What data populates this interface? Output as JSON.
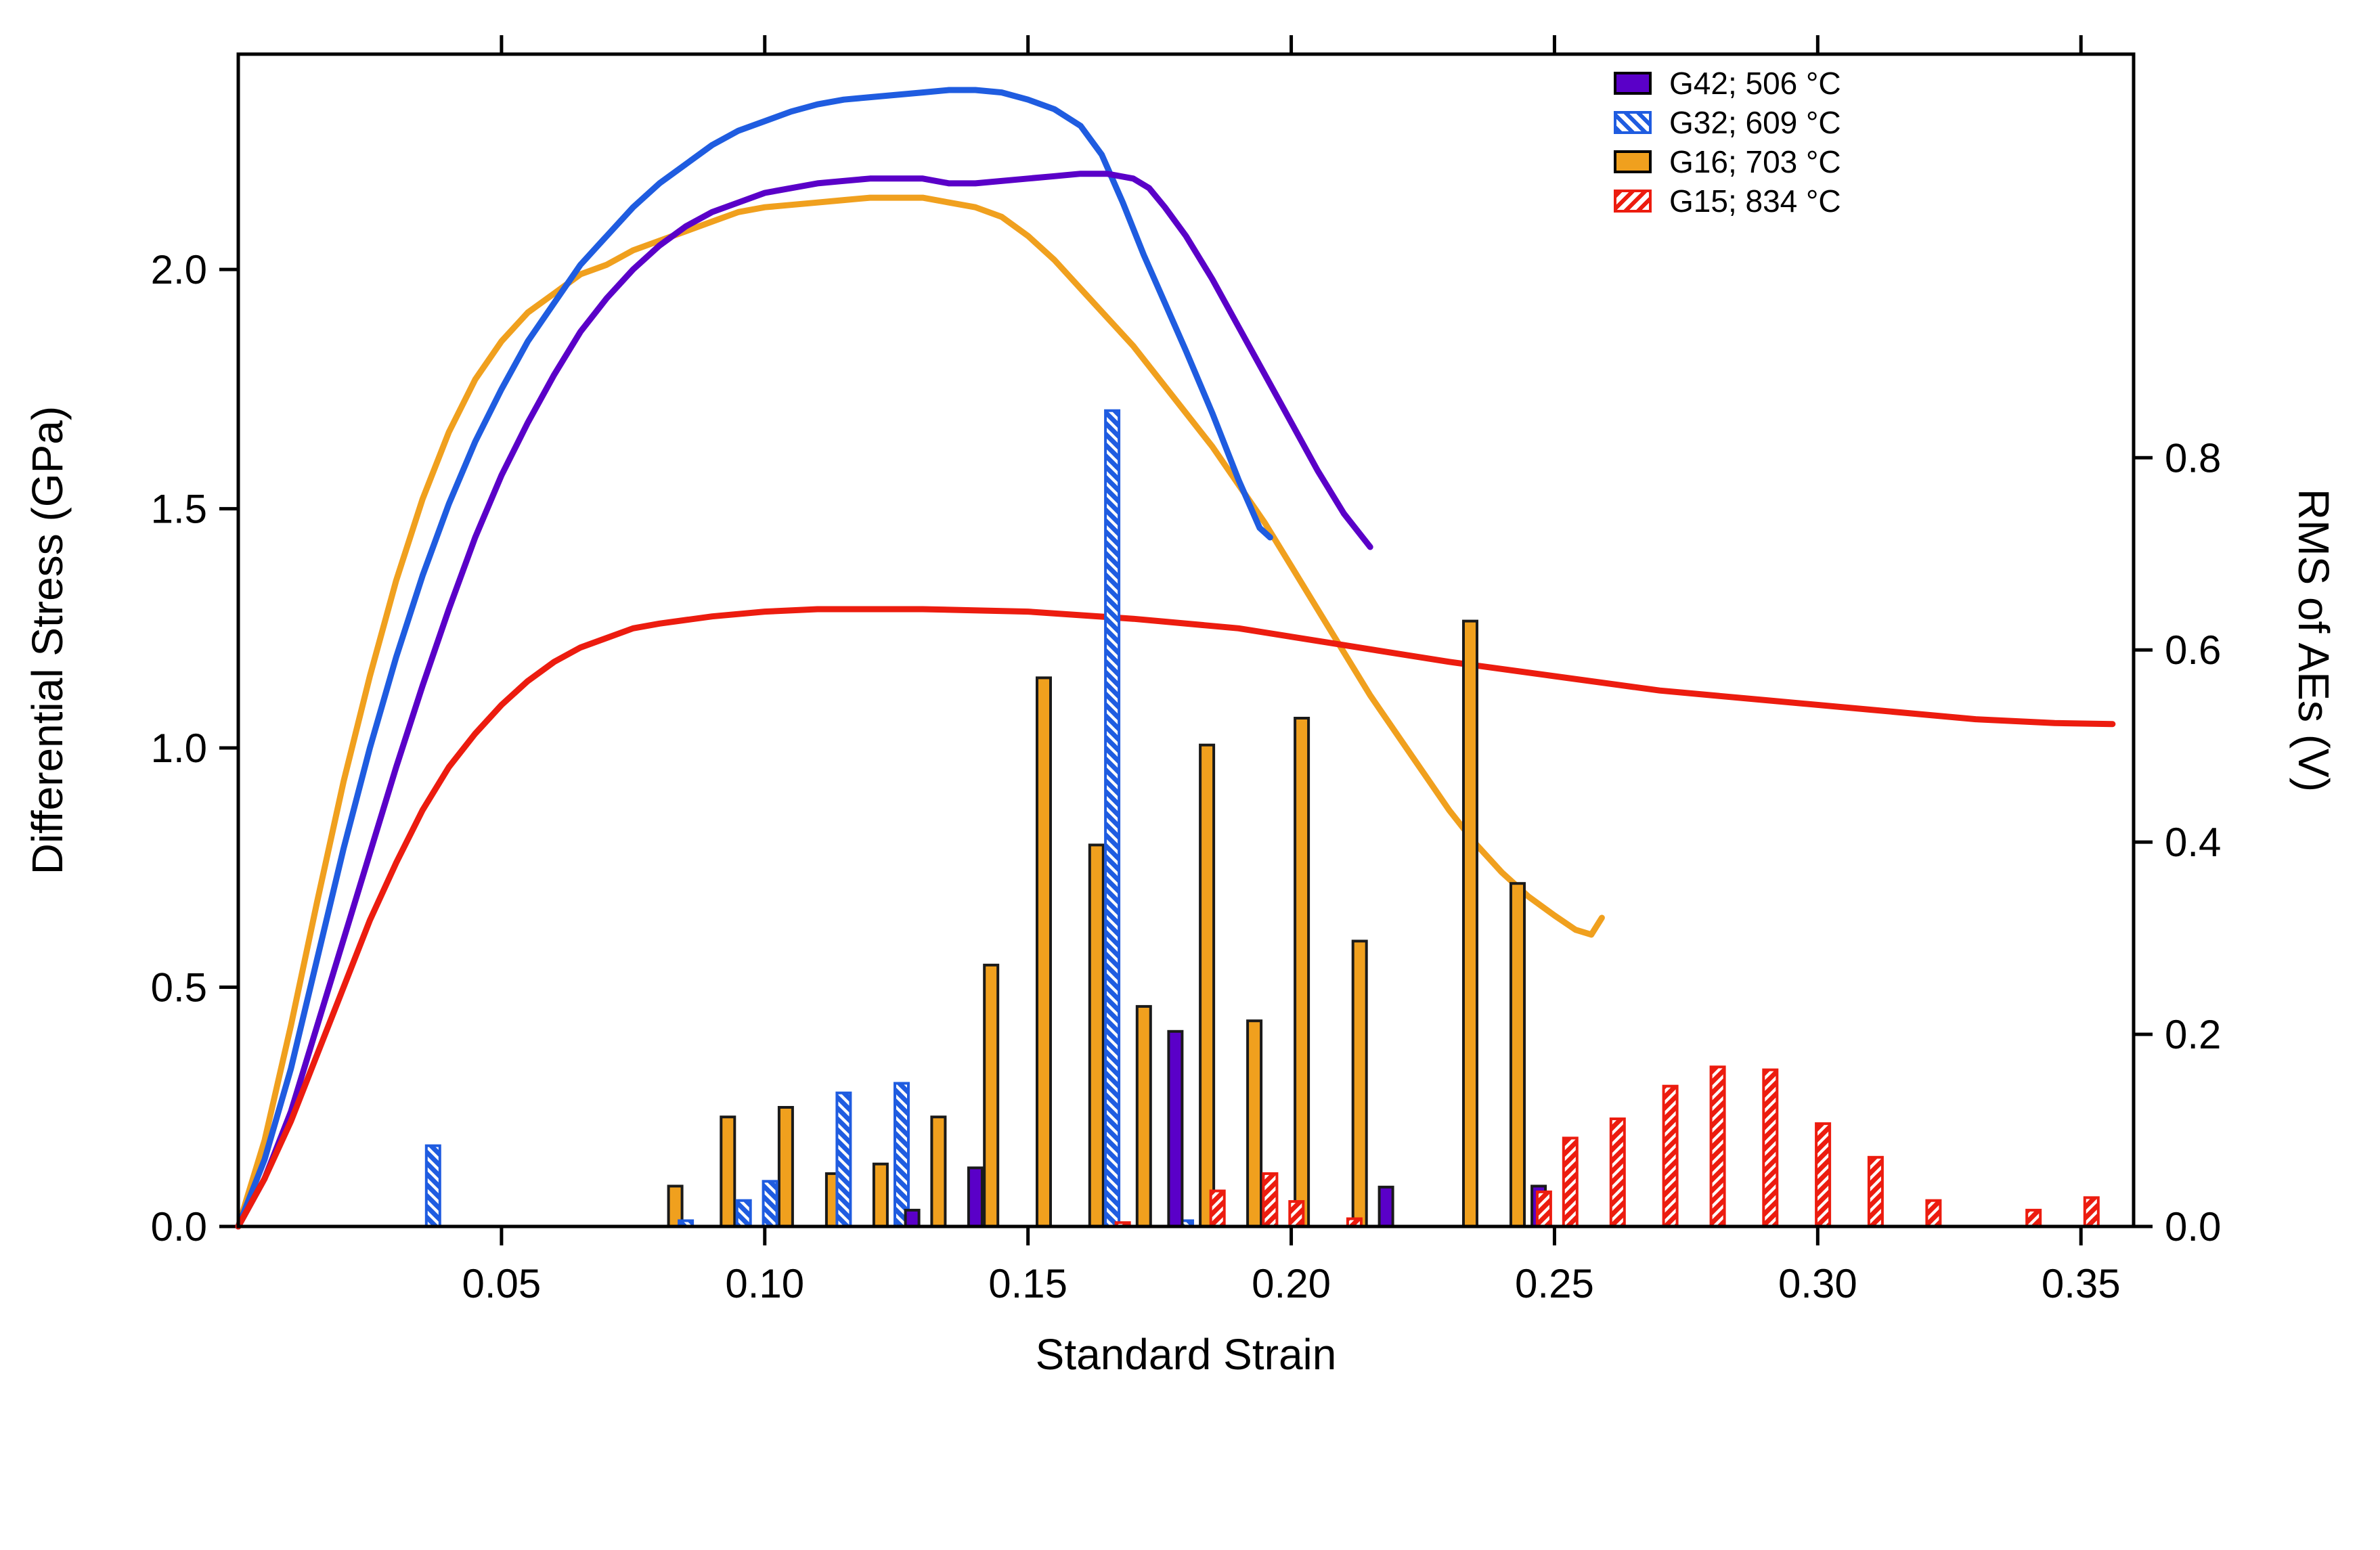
{
  "chart_data": {
    "type": "line+bar",
    "title": "",
    "xlabel": "Standard Strain",
    "ylabel_left": "Differential Stress (GPa)",
    "ylabel_right": "RMS of AEs (V)",
    "xlim": [
      0,
      0.36
    ],
    "ylim_left": [
      0,
      2.45
    ],
    "ylim_right": [
      0,
      1.22
    ],
    "grid": false,
    "background": "#ffffff",
    "axis_color": "#000000",
    "legend_position": "top-right-inside",
    "x_ticks": [
      {
        "v": 0.05,
        "label": "0.05"
      },
      {
        "v": 0.1,
        "label": "0.10"
      },
      {
        "v": 0.15,
        "label": "0.15"
      },
      {
        "v": 0.2,
        "label": "0.20"
      },
      {
        "v": 0.25,
        "label": "0.25"
      },
      {
        "v": 0.3,
        "label": "0.30"
      },
      {
        "v": 0.35,
        "label": "0.35"
      }
    ],
    "y_ticks_left": [
      {
        "v": 0.0,
        "label": "0.0"
      },
      {
        "v": 0.5,
        "label": "0.5"
      },
      {
        "v": 1.0,
        "label": "1.0"
      },
      {
        "v": 1.5,
        "label": "1.5"
      },
      {
        "v": 2.0,
        "label": "2.0"
      }
    ],
    "y_ticks_right": [
      {
        "v": 0.0,
        "label": "0.0"
      },
      {
        "v": 0.2,
        "label": "0.2"
      },
      {
        "v": 0.4,
        "label": "0.4"
      },
      {
        "v": 0.6,
        "label": "0.6"
      },
      {
        "v": 0.8,
        "label": "0.8"
      }
    ],
    "legend": [
      {
        "label": "G42; 506 °C",
        "color": "#5a00c8",
        "edge": "#000000",
        "hatch": false,
        "hatch_dir": ""
      },
      {
        "label": "G32; 609 °C",
        "color": "#1f5ce0",
        "edge": "#1f5ce0",
        "hatch": true,
        "hatch_dir": "\\"
      },
      {
        "label": "G16; 703 °C",
        "color": "#f0a01e",
        "edge": "#000000",
        "hatch": false,
        "hatch_dir": ""
      },
      {
        "label": "G15; 834 °C",
        "color": "#ec1c0f",
        "edge": "#ec1c0f",
        "hatch": true,
        "hatch_dir": "/"
      }
    ],
    "line_series": [
      {
        "id": "g16",
        "name": "G16; 703 °C",
        "color": "#f0a01e",
        "axis": "left",
        "points": [
          [
            0.0,
            0.0
          ],
          [
            0.005,
            0.18
          ],
          [
            0.01,
            0.42
          ],
          [
            0.015,
            0.68
          ],
          [
            0.02,
            0.93
          ],
          [
            0.025,
            1.15
          ],
          [
            0.03,
            1.35
          ],
          [
            0.035,
            1.52
          ],
          [
            0.04,
            1.66
          ],
          [
            0.045,
            1.77
          ],
          [
            0.05,
            1.85
          ],
          [
            0.055,
            1.91
          ],
          [
            0.06,
            1.95
          ],
          [
            0.065,
            1.99
          ],
          [
            0.07,
            2.01
          ],
          [
            0.075,
            2.04
          ],
          [
            0.08,
            2.06
          ],
          [
            0.085,
            2.08
          ],
          [
            0.09,
            2.1
          ],
          [
            0.095,
            2.12
          ],
          [
            0.1,
            2.13
          ],
          [
            0.105,
            2.135
          ],
          [
            0.11,
            2.14
          ],
          [
            0.115,
            2.145
          ],
          [
            0.12,
            2.15
          ],
          [
            0.125,
            2.15
          ],
          [
            0.13,
            2.15
          ],
          [
            0.135,
            2.14
          ],
          [
            0.14,
            2.13
          ],
          [
            0.145,
            2.11
          ],
          [
            0.15,
            2.07
          ],
          [
            0.155,
            2.02
          ],
          [
            0.16,
            1.96
          ],
          [
            0.165,
            1.9
          ],
          [
            0.17,
            1.84
          ],
          [
            0.175,
            1.77
          ],
          [
            0.18,
            1.7
          ],
          [
            0.185,
            1.63
          ],
          [
            0.19,
            1.55
          ],
          [
            0.195,
            1.47
          ],
          [
            0.2,
            1.38
          ],
          [
            0.205,
            1.29
          ],
          [
            0.21,
            1.2
          ],
          [
            0.215,
            1.11
          ],
          [
            0.22,
            1.03
          ],
          [
            0.225,
            0.95
          ],
          [
            0.23,
            0.87
          ],
          [
            0.235,
            0.8
          ],
          [
            0.24,
            0.74
          ],
          [
            0.245,
            0.69
          ],
          [
            0.25,
            0.65
          ],
          [
            0.254,
            0.62
          ],
          [
            0.257,
            0.61
          ],
          [
            0.259,
            0.645
          ]
        ]
      },
      {
        "id": "g32",
        "name": "G32; 609 °C",
        "color": "#1f5ce0",
        "axis": "left",
        "points": [
          [
            0.0,
            0.0
          ],
          [
            0.005,
            0.14
          ],
          [
            0.01,
            0.33
          ],
          [
            0.015,
            0.56
          ],
          [
            0.02,
            0.79
          ],
          [
            0.025,
            1.0
          ],
          [
            0.03,
            1.19
          ],
          [
            0.035,
            1.36
          ],
          [
            0.04,
            1.51
          ],
          [
            0.045,
            1.64
          ],
          [
            0.05,
            1.75
          ],
          [
            0.055,
            1.85
          ],
          [
            0.06,
            1.93
          ],
          [
            0.065,
            2.01
          ],
          [
            0.07,
            2.07
          ],
          [
            0.075,
            2.13
          ],
          [
            0.08,
            2.18
          ],
          [
            0.085,
            2.22
          ],
          [
            0.09,
            2.26
          ],
          [
            0.095,
            2.29
          ],
          [
            0.1,
            2.31
          ],
          [
            0.105,
            2.33
          ],
          [
            0.11,
            2.345
          ],
          [
            0.115,
            2.355
          ],
          [
            0.12,
            2.36
          ],
          [
            0.125,
            2.365
          ],
          [
            0.13,
            2.37
          ],
          [
            0.135,
            2.375
          ],
          [
            0.14,
            2.375
          ],
          [
            0.145,
            2.37
          ],
          [
            0.15,
            2.355
          ],
          [
            0.155,
            2.335
          ],
          [
            0.16,
            2.3
          ],
          [
            0.164,
            2.24
          ],
          [
            0.168,
            2.14
          ],
          [
            0.172,
            2.03
          ],
          [
            0.176,
            1.93
          ],
          [
            0.18,
            1.83
          ],
          [
            0.185,
            1.7
          ],
          [
            0.19,
            1.56
          ],
          [
            0.194,
            1.46
          ],
          [
            0.196,
            1.44
          ]
        ]
      },
      {
        "id": "g42",
        "name": "G42; 506 °C",
        "color": "#5a00c8",
        "axis": "left",
        "points": [
          [
            0.0,
            0.0
          ],
          [
            0.005,
            0.1
          ],
          [
            0.01,
            0.24
          ],
          [
            0.015,
            0.42
          ],
          [
            0.02,
            0.6
          ],
          [
            0.025,
            0.78
          ],
          [
            0.03,
            0.96
          ],
          [
            0.035,
            1.13
          ],
          [
            0.04,
            1.29
          ],
          [
            0.045,
            1.44
          ],
          [
            0.05,
            1.57
          ],
          [
            0.055,
            1.68
          ],
          [
            0.06,
            1.78
          ],
          [
            0.065,
            1.87
          ],
          [
            0.07,
            1.94
          ],
          [
            0.075,
            2.0
          ],
          [
            0.08,
            2.05
          ],
          [
            0.085,
            2.09
          ],
          [
            0.09,
            2.12
          ],
          [
            0.095,
            2.14
          ],
          [
            0.1,
            2.16
          ],
          [
            0.105,
            2.17
          ],
          [
            0.11,
            2.18
          ],
          [
            0.115,
            2.185
          ],
          [
            0.12,
            2.19
          ],
          [
            0.13,
            2.19
          ],
          [
            0.135,
            2.18
          ],
          [
            0.14,
            2.18
          ],
          [
            0.15,
            2.19
          ],
          [
            0.155,
            2.195
          ],
          [
            0.16,
            2.2
          ],
          [
            0.165,
            2.2
          ],
          [
            0.17,
            2.19
          ],
          [
            0.173,
            2.17
          ],
          [
            0.176,
            2.13
          ],
          [
            0.18,
            2.07
          ],
          [
            0.185,
            1.98
          ],
          [
            0.19,
            1.88
          ],
          [
            0.195,
            1.78
          ],
          [
            0.2,
            1.68
          ],
          [
            0.205,
            1.58
          ],
          [
            0.21,
            1.49
          ],
          [
            0.215,
            1.42
          ]
        ]
      },
      {
        "id": "g15",
        "name": "G15; 834 °C",
        "color": "#ec1c0f",
        "axis": "left",
        "points": [
          [
            0.0,
            0.0
          ],
          [
            0.005,
            0.1
          ],
          [
            0.01,
            0.22
          ],
          [
            0.015,
            0.36
          ],
          [
            0.02,
            0.5
          ],
          [
            0.025,
            0.64
          ],
          [
            0.03,
            0.76
          ],
          [
            0.035,
            0.87
          ],
          [
            0.04,
            0.96
          ],
          [
            0.045,
            1.03
          ],
          [
            0.05,
            1.09
          ],
          [
            0.055,
            1.14
          ],
          [
            0.06,
            1.18
          ],
          [
            0.065,
            1.21
          ],
          [
            0.07,
            1.23
          ],
          [
            0.075,
            1.25
          ],
          [
            0.08,
            1.26
          ],
          [
            0.09,
            1.275
          ],
          [
            0.1,
            1.285
          ],
          [
            0.11,
            1.29
          ],
          [
            0.13,
            1.29
          ],
          [
            0.15,
            1.285
          ],
          [
            0.17,
            1.27
          ],
          [
            0.19,
            1.25
          ],
          [
            0.21,
            1.215
          ],
          [
            0.23,
            1.18
          ],
          [
            0.25,
            1.15
          ],
          [
            0.27,
            1.12
          ],
          [
            0.29,
            1.1
          ],
          [
            0.31,
            1.08
          ],
          [
            0.33,
            1.06
          ],
          [
            0.345,
            1.052
          ],
          [
            0.356,
            1.05
          ]
        ]
      }
    ],
    "bar_series": [
      {
        "id": "g16",
        "name": "G16; 703 °C",
        "axis": "right",
        "color": "#f0a01e",
        "edge": "#1a1a1a",
        "hatch": false,
        "hatch_dir": "",
        "values": [
          [
            0.083,
            0.042
          ],
          [
            0.093,
            0.114
          ],
          [
            0.104,
            0.124
          ],
          [
            0.113,
            0.055
          ],
          [
            0.122,
            0.065
          ],
          [
            0.133,
            0.114
          ],
          [
            0.143,
            0.272
          ],
          [
            0.153,
            0.571
          ],
          [
            0.163,
            0.397
          ],
          [
            0.172,
            0.229
          ],
          [
            0.184,
            0.501
          ],
          [
            0.193,
            0.214
          ],
          [
            0.202,
            0.529
          ],
          [
            0.213,
            0.297
          ],
          [
            0.234,
            0.63
          ],
          [
            0.243,
            0.357
          ]
        ]
      },
      {
        "id": "g32",
        "name": "G32; 609 °C",
        "axis": "right",
        "color": "#1f5ce0",
        "edge": "#1f5ce0",
        "hatch": true,
        "hatch_dir": "\\",
        "values": [
          [
            0.037,
            0.084
          ],
          [
            0.085,
            0.006
          ],
          [
            0.096,
            0.027
          ],
          [
            0.101,
            0.047
          ],
          [
            0.115,
            0.139
          ],
          [
            0.126,
            0.149
          ],
          [
            0.166,
            0.849
          ],
          [
            0.18,
            0.006
          ]
        ]
      },
      {
        "id": "g42",
        "name": "G42; 506 °C",
        "axis": "right",
        "color": "#5a00c8",
        "edge": "#1a1a1a",
        "hatch": false,
        "hatch_dir": "",
        "values": [
          [
            0.128,
            0.017
          ],
          [
            0.14,
            0.061
          ],
          [
            0.178,
            0.203
          ],
          [
            0.218,
            0.041
          ],
          [
            0.247,
            0.042
          ]
        ]
      },
      {
        "id": "g15",
        "name": "G15; 834 °C",
        "axis": "right",
        "color": "#ec1c0f",
        "edge": "#ec1c0f",
        "hatch": true,
        "hatch_dir": "/",
        "values": [
          [
            0.168,
            0.004
          ],
          [
            0.186,
            0.037
          ],
          [
            0.196,
            0.055
          ],
          [
            0.201,
            0.026
          ],
          [
            0.212,
            0.008
          ],
          [
            0.248,
            0.036
          ],
          [
            0.253,
            0.092
          ],
          [
            0.262,
            0.112
          ],
          [
            0.272,
            0.146
          ],
          [
            0.281,
            0.166
          ],
          [
            0.291,
            0.163
          ],
          [
            0.301,
            0.107
          ],
          [
            0.311,
            0.072
          ],
          [
            0.322,
            0.027
          ],
          [
            0.341,
            0.017
          ],
          [
            0.352,
            0.03
          ]
        ]
      }
    ]
  }
}
